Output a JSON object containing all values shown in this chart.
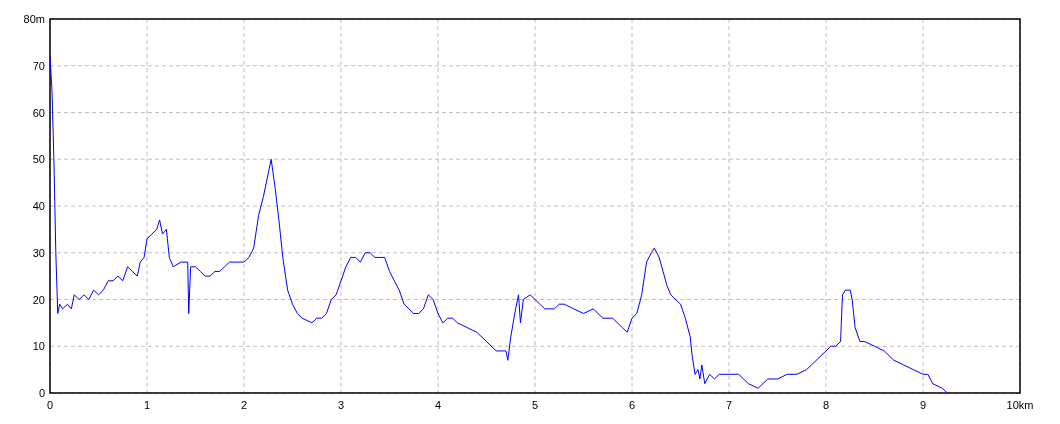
{
  "chart_data": {
    "type": "line",
    "x": [
      0,
      0.02,
      0.04,
      0.06,
      0.08,
      0.1,
      0.13,
      0.18,
      0.22,
      0.25,
      0.3,
      0.35,
      0.4,
      0.45,
      0.5,
      0.55,
      0.6,
      0.65,
      0.7,
      0.75,
      0.8,
      0.85,
      0.9,
      0.93,
      0.97,
      1.0,
      1.05,
      1.1,
      1.13,
      1.16,
      1.2,
      1.23,
      1.27,
      1.35,
      1.42,
      1.43,
      1.45,
      1.5,
      1.55,
      1.6,
      1.65,
      1.7,
      1.75,
      1.8,
      1.85,
      1.95,
      2.0,
      2.05,
      2.1,
      2.15,
      2.2,
      2.25,
      2.28,
      2.32,
      2.36,
      2.4,
      2.45,
      2.5,
      2.55,
      2.6,
      2.65,
      2.7,
      2.75,
      2.8,
      2.85,
      2.9,
      2.95,
      3.0,
      3.05,
      3.1,
      3.15,
      3.2,
      3.25,
      3.3,
      3.35,
      3.4,
      3.45,
      3.5,
      3.55,
      3.6,
      3.65,
      3.7,
      3.75,
      3.8,
      3.85,
      3.9,
      3.95,
      4.0,
      4.05,
      4.1,
      4.15,
      4.2,
      4.3,
      4.4,
      4.5,
      4.6,
      4.7,
      4.72,
      4.75,
      4.8,
      4.83,
      4.85,
      4.88,
      4.95,
      5.0,
      5.05,
      5.1,
      5.2,
      5.25,
      5.3,
      5.4,
      5.5,
      5.6,
      5.7,
      5.8,
      5.9,
      5.95,
      6.0,
      6.05,
      6.1,
      6.15,
      6.2,
      6.23,
      6.28,
      6.32,
      6.36,
      6.4,
      6.5,
      6.55,
      6.6,
      6.62,
      6.65,
      6.68,
      6.7,
      6.72,
      6.75,
      6.8,
      6.85,
      6.9,
      7.0,
      7.1,
      7.2,
      7.3,
      7.4,
      7.5,
      7.6,
      7.7,
      7.8,
      7.85,
      7.95,
      8.0,
      8.05,
      8.1,
      8.15,
      8.17,
      8.2,
      8.25,
      8.27,
      8.3,
      8.35,
      8.4,
      8.5,
      8.6,
      8.7,
      8.8,
      8.9,
      9.0,
      9.05,
      9.1,
      9.2,
      9.25
    ],
    "series": [
      {
        "color": "#0000ff",
        "values": [
          72,
          65,
          50,
          30,
          17,
          19,
          18,
          19,
          18,
          21,
          20,
          21,
          20,
          22,
          21,
          22,
          24,
          24,
          25,
          24,
          27,
          26,
          25,
          28,
          29,
          33,
          34,
          35,
          37,
          34,
          35,
          29,
          27,
          28,
          28,
          17,
          27,
          27,
          26,
          25,
          25,
          26,
          26,
          27,
          28,
          28,
          28,
          29,
          31,
          38,
          42,
          47,
          50,
          44,
          37,
          29,
          22,
          19,
          17,
          16,
          15.5,
          15,
          16,
          16,
          17,
          20,
          21,
          24,
          27,
          29,
          29,
          28,
          30,
          30,
          29,
          29,
          29,
          26,
          24,
          22,
          19,
          18,
          17,
          17,
          18,
          21,
          20,
          17,
          15,
          16,
          16,
          15,
          14,
          13,
          11,
          9,
          9,
          7,
          12,
          18,
          21,
          15,
          20,
          21,
          20,
          19,
          18,
          18,
          19,
          19,
          18,
          17,
          18,
          16,
          16,
          14,
          13,
          16,
          17,
          21,
          28,
          30,
          31,
          29,
          26,
          23,
          21,
          19,
          16,
          12,
          8,
          4,
          5,
          3,
          6,
          2,
          4,
          3,
          4,
          4,
          4,
          2,
          1,
          3,
          3,
          4,
          4,
          5,
          6,
          8,
          9,
          10,
          10,
          11,
          21,
          22,
          22,
          20,
          14,
          11,
          11,
          10,
          9,
          7,
          6,
          5,
          4,
          4,
          2,
          1,
          0
        ]
      }
    ],
    "xlim": [
      0,
      10
    ],
    "ylim": [
      0,
      80
    ],
    "xticks": [
      0,
      1,
      2,
      3,
      4,
      5,
      6,
      7,
      8,
      9,
      {
        "value": 10,
        "label": "10km"
      }
    ],
    "yticks": [
      0,
      10,
      20,
      30,
      40,
      50,
      60,
      70,
      {
        "value": 80,
        "label": "80m"
      }
    ],
    "grid": true,
    "line_style": "solid",
    "marker": "none"
  }
}
